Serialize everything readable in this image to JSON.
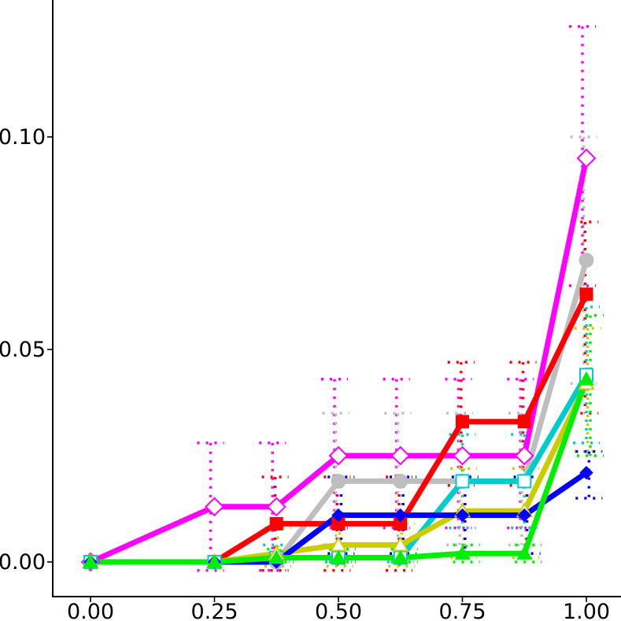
{
  "chart_data": {
    "type": "line",
    "title": "",
    "xlabel": "",
    "ylabel": "",
    "xlim": [
      -0.08,
      1.0
    ],
    "ylim": [
      -0.0085,
      0.132
    ],
    "grid": false,
    "legend": "none",
    "x_ticks": [
      {
        "value": 0.0,
        "label": "0.00"
      },
      {
        "value": 0.25,
        "label": "0.25"
      },
      {
        "value": 0.5,
        "label": "0.50"
      },
      {
        "value": 0.75,
        "label": "0.75"
      },
      {
        "value": 1.0,
        "label": "1.00"
      }
    ],
    "y_ticks": [
      {
        "value": 0.0,
        "label": "0.00"
      },
      {
        "value": 0.05,
        "label": "0.05"
      },
      {
        "value": 0.1,
        "label": "0.10"
      }
    ],
    "series": [
      {
        "color": "#ff00ff",
        "marker": "diamond-open",
        "x": [
          0.0,
          0.25,
          0.375,
          0.5,
          0.625,
          0.75,
          0.875,
          1.0
        ],
        "y": [
          0.0,
          0.013,
          0.013,
          0.025,
          0.025,
          0.025,
          0.025,
          0.095
        ],
        "lower": [
          0.0,
          -0.002,
          -0.002,
          0.008,
          0.008,
          0.008,
          0.008,
          0.065
        ],
        "upper": [
          0.0,
          0.028,
          0.028,
          0.043,
          0.043,
          0.043,
          0.043,
          0.126
        ]
      },
      {
        "color": "#bebebe",
        "marker": "circle",
        "x": [
          0.0,
          0.25,
          0.375,
          0.5,
          0.625,
          0.75,
          0.875,
          1.0
        ],
        "y": [
          0.0,
          0.0,
          0.0,
          0.019,
          0.019,
          0.019,
          0.019,
          0.071
        ],
        "lower": [
          0.0,
          0.0,
          0.0,
          0.004,
          0.004,
          0.004,
          0.004,
          0.042
        ],
        "upper": [
          0.0,
          0.0,
          0.0,
          0.035,
          0.035,
          0.035,
          0.035,
          0.1
        ]
      },
      {
        "color": "#ff0000",
        "marker": "square",
        "x": [
          0.0,
          0.25,
          0.375,
          0.5,
          0.625,
          0.75,
          0.875,
          1.0
        ],
        "y": [
          0.0,
          0.0,
          0.009,
          0.009,
          0.009,
          0.033,
          0.033,
          0.063
        ],
        "lower": [
          0.0,
          0.0,
          -0.002,
          -0.002,
          -0.002,
          0.018,
          0.018,
          0.035
        ],
        "upper": [
          0.0,
          0.0,
          0.02,
          0.02,
          0.02,
          0.047,
          0.047,
          0.08
        ]
      },
      {
        "color": "#00cccc",
        "marker": "square-open",
        "x": [
          0.0,
          0.25,
          0.375,
          0.5,
          0.625,
          0.75,
          0.875,
          1.0
        ],
        "y": [
          0.0,
          0.0,
          0.001,
          0.001,
          0.001,
          0.019,
          0.019,
          0.044
        ],
        "lower": [
          0.0,
          0.0,
          0.0,
          0.0,
          0.0,
          0.008,
          0.008,
          0.028
        ],
        "upper": [
          0.0,
          0.0,
          0.004,
          0.004,
          0.004,
          0.03,
          0.03,
          0.06
        ]
      },
      {
        "color": "#cccc00",
        "marker": "triangle-open",
        "x": [
          0.0,
          0.25,
          0.375,
          0.5,
          0.625,
          0.75,
          0.875,
          1.0
        ],
        "y": [
          0.0,
          0.0,
          0.002,
          0.004,
          0.004,
          0.012,
          0.012,
          0.042
        ],
        "lower": [
          0.0,
          0.0,
          -0.001,
          -0.001,
          -0.001,
          0.001,
          0.001,
          0.026
        ],
        "upper": [
          0.0,
          0.0,
          0.008,
          0.009,
          0.009,
          0.022,
          0.022,
          0.055
        ]
      },
      {
        "color": "#0000ff",
        "marker": "diamond",
        "x": [
          0.0,
          0.25,
          0.375,
          0.5,
          0.625,
          0.75,
          0.875,
          1.0
        ],
        "y": [
          0.0,
          0.0,
          0.0,
          0.011,
          0.011,
          0.011,
          0.011,
          0.021
        ],
        "lower": [
          0.0,
          0.0,
          0.0,
          0.002,
          0.002,
          0.002,
          0.002,
          0.015
        ],
        "upper": [
          0.0,
          0.0,
          0.0,
          0.02,
          0.02,
          0.02,
          0.02,
          0.026
        ]
      },
      {
        "color": "#00ee00",
        "marker": "triangle",
        "x": [
          0.0,
          0.25,
          0.375,
          0.5,
          0.625,
          0.75,
          0.875,
          1.0
        ],
        "y": [
          0.0,
          0.0,
          0.001,
          0.001,
          0.001,
          0.002,
          0.002,
          0.043
        ],
        "lower": [
          0.0,
          0.0,
          0.0,
          0.0,
          0.0,
          0.0,
          0.0,
          0.025
        ],
        "upper": [
          0.0,
          0.0,
          0.003,
          0.003,
          0.003,
          0.004,
          0.004,
          0.058
        ]
      }
    ]
  }
}
